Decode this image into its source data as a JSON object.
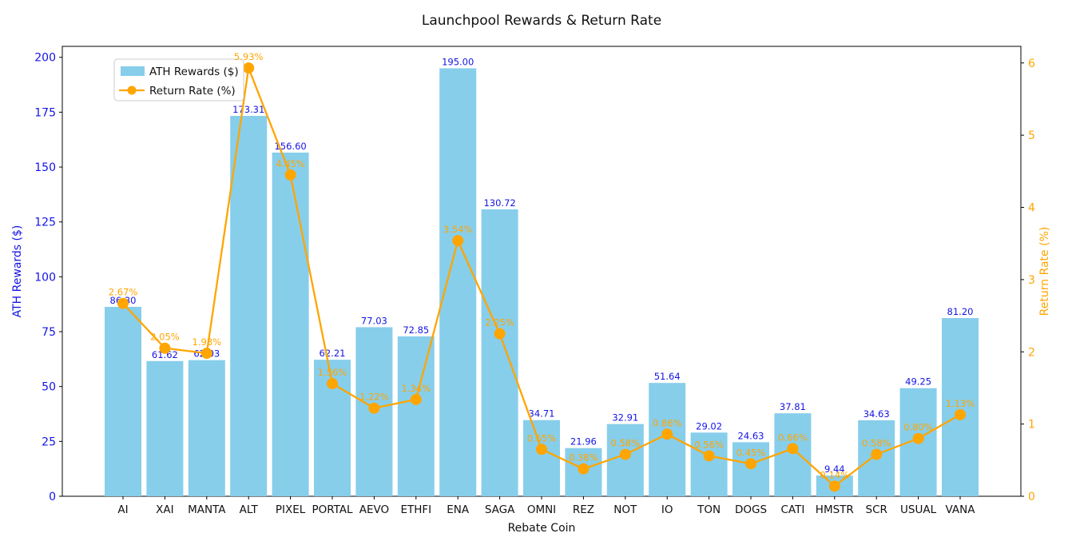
{
  "title": "Launchpool Rewards & Return Rate",
  "chart_data": {
    "type": "bar",
    "title": "Launchpool Rewards & Return Rate",
    "xlabel": "Rebate Coin",
    "ylabel_left": "ATH Rewards ($)",
    "ylabel_right": "Return Rate (%)",
    "categories": [
      "AI",
      "XAI",
      "MANTA",
      "ALT",
      "PIXEL",
      "PORTAL",
      "AEVO",
      "ETHFI",
      "ENA",
      "SAGA",
      "OMNI",
      "REZ",
      "NOT",
      "IO",
      "TON",
      "DOGS",
      "CATI",
      "HMSTR",
      "SCR",
      "USUAL",
      "VANA"
    ],
    "series": [
      {
        "name": "ATH Rewards ($)",
        "type": "bar",
        "axis": "left",
        "color": "#87CEEB",
        "values": [
          86.3,
          61.62,
          62.03,
          173.31,
          156.6,
          62.21,
          77.03,
          72.85,
          195.0,
          130.72,
          34.71,
          21.96,
          32.91,
          51.64,
          29.02,
          24.63,
          37.81,
          9.44,
          34.63,
          49.25,
          81.2
        ],
        "labels": [
          "86.30",
          "61.62",
          "62.03",
          "173.31",
          "156.60",
          "62.21",
          "77.03",
          "72.85",
          "195.00",
          "130.72",
          "34.71",
          "21.96",
          "32.91",
          "51.64",
          "29.02",
          "24.63",
          "37.81",
          "9.44",
          "34.63",
          "49.25",
          "81.20"
        ],
        "label_color": "#1414e6"
      },
      {
        "name": "Return Rate (%)",
        "type": "line",
        "axis": "right",
        "color": "#FFA500",
        "values": [
          2.67,
          2.05,
          1.98,
          5.93,
          4.45,
          1.56,
          1.22,
          1.34,
          3.54,
          2.25,
          0.65,
          0.38,
          0.58,
          0.86,
          0.56,
          0.45,
          0.66,
          0.14,
          0.58,
          0.8,
          1.13
        ],
        "labels": [
          "2.67%",
          "2.05%",
          "1.98%",
          "5.93%",
          "4.45%",
          "1.56%",
          "1.22%",
          "1.34%",
          "3.54%",
          "2.25%",
          "0.65%",
          "0.38%",
          "0.58%",
          "0.86%",
          "0.56%",
          "0.45%",
          "0.66%",
          "0.14%",
          "0.58%",
          "0.80%",
          "1.13%"
        ],
        "label_color": "#FFA500"
      }
    ],
    "axes": {
      "left": {
        "ticks": [
          0,
          25,
          50,
          75,
          100,
          125,
          150,
          175,
          200
        ],
        "lim": [
          0,
          205
        ],
        "color": "#1414e6"
      },
      "right": {
        "ticks": [
          0,
          1,
          2,
          3,
          4,
          5,
          6
        ],
        "lim": [
          0,
          6.23
        ],
        "color": "#FFA500"
      }
    },
    "legend": {
      "entries": [
        "ATH Rewards ($)",
        "Return Rate (%)"
      ],
      "position": "upper left"
    },
    "grid": false,
    "background": "#ffffff",
    "frame_color": "#000000"
  }
}
